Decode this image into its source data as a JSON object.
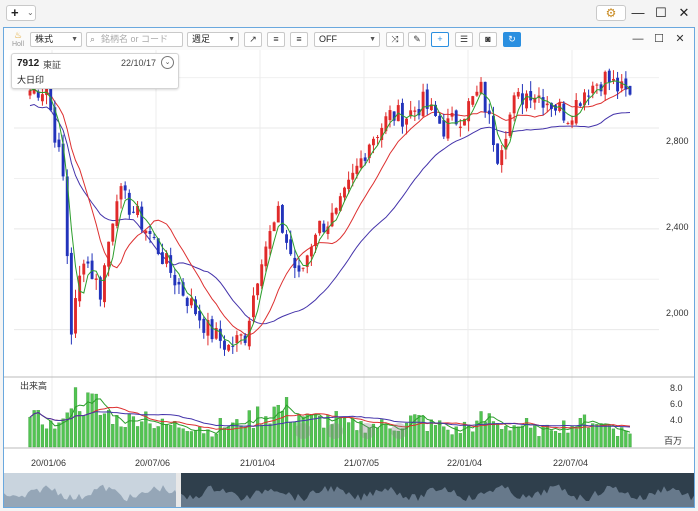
{
  "app": {
    "add_label": "+",
    "add_chevron": "⌄",
    "settings_icon": "gear-icon",
    "window_minimize": "—",
    "window_maximize": "☐",
    "window_close": "✕"
  },
  "toolbar": {
    "logo_text": "Holl",
    "market_type": "株式",
    "search_placeholder": "銘柄名 or コード",
    "period": "週足",
    "indicator_value": "OFF",
    "buttons": [
      "trend-line",
      "text-align-left",
      "text-align-right",
      "shuffle",
      "draw",
      "crosshair",
      "list",
      "camera",
      "refresh"
    ],
    "pane_restore": "☐",
    "pane_close": "✕"
  },
  "stock": {
    "code": "7912",
    "market": "東証",
    "date": "22/10/17",
    "name": "大日印"
  },
  "price_axis": {
    "ticks": [
      "2,800",
      "2,400",
      "2,000"
    ]
  },
  "volume_pane": {
    "label": "出来高",
    "ticks": [
      "8.0",
      "6.0",
      "4.0"
    ],
    "unit": "百万"
  },
  "x_axis": {
    "ticks": [
      "20/01/06",
      "20/07/06",
      "21/01/04",
      "21/07/05",
      "22/01/04",
      "22/07/04"
    ]
  },
  "colors": {
    "up": "#e02a2a",
    "down": "#2233bb",
    "ma_short": "#2c9e2c",
    "ma_mid": "#dd3030",
    "ma_long": "#4433aa",
    "volume": "#52c452",
    "accent": "#2a8fe0"
  },
  "chart_data": {
    "type": "candlestick",
    "interval": "weekly",
    "x_range": [
      "2020-01-06",
      "2022-10-17"
    ],
    "y_range": [
      1820,
      3070
    ],
    "price_points_approx": [
      [
        "2020-01-06",
        2950
      ],
      [
        "2020-02-03",
        2960
      ],
      [
        "2020-03-02",
        2600
      ],
      [
        "2020-03-16",
        2000
      ],
      [
        "2020-04-06",
        2300
      ],
      [
        "2020-05-04",
        2150
      ],
      [
        "2020-06-01",
        2550
      ],
      [
        "2020-07-06",
        2450
      ],
      [
        "2020-08-03",
        2350
      ],
      [
        "2020-09-07",
        2200
      ],
      [
        "2020-10-05",
        2100
      ],
      [
        "2020-11-02",
        2000
      ],
      [
        "2020-12-07",
        1930
      ],
      [
        "2021-01-04",
        1980
      ],
      [
        "2021-02-01",
        2300
      ],
      [
        "2021-03-01",
        2450
      ],
      [
        "2021-04-05",
        2200
      ],
      [
        "2021-05-03",
        2400
      ],
      [
        "2021-06-07",
        2450
      ],
      [
        "2021-07-05",
        2600
      ],
      [
        "2021-08-02",
        2750
      ],
      [
        "2021-09-06",
        2850
      ],
      [
        "2021-10-04",
        2850
      ],
      [
        "2021-11-01",
        2900
      ],
      [
        "2021-12-06",
        2800
      ],
      [
        "2022-01-04",
        2850
      ],
      [
        "2022-02-07",
        2950
      ],
      [
        "2022-03-07",
        2700
      ],
      [
        "2022-04-04",
        2900
      ],
      [
        "2022-05-02",
        2950
      ],
      [
        "2022-06-06",
        2900
      ],
      [
        "2022-07-04",
        2850
      ],
      [
        "2022-08-01",
        2950
      ],
      [
        "2022-09-05",
        3000
      ],
      [
        "2022-10-17",
        2920
      ]
    ],
    "volume_millions_approx": [
      5,
      4,
      9,
      8,
      6,
      5,
      6,
      4,
      4,
      4,
      3,
      4,
      5,
      6,
      7,
      6,
      5,
      5,
      4,
      4,
      4,
      4,
      5,
      4,
      3,
      4,
      5,
      4,
      4,
      3,
      4,
      4,
      5,
      4,
      3
    ]
  }
}
